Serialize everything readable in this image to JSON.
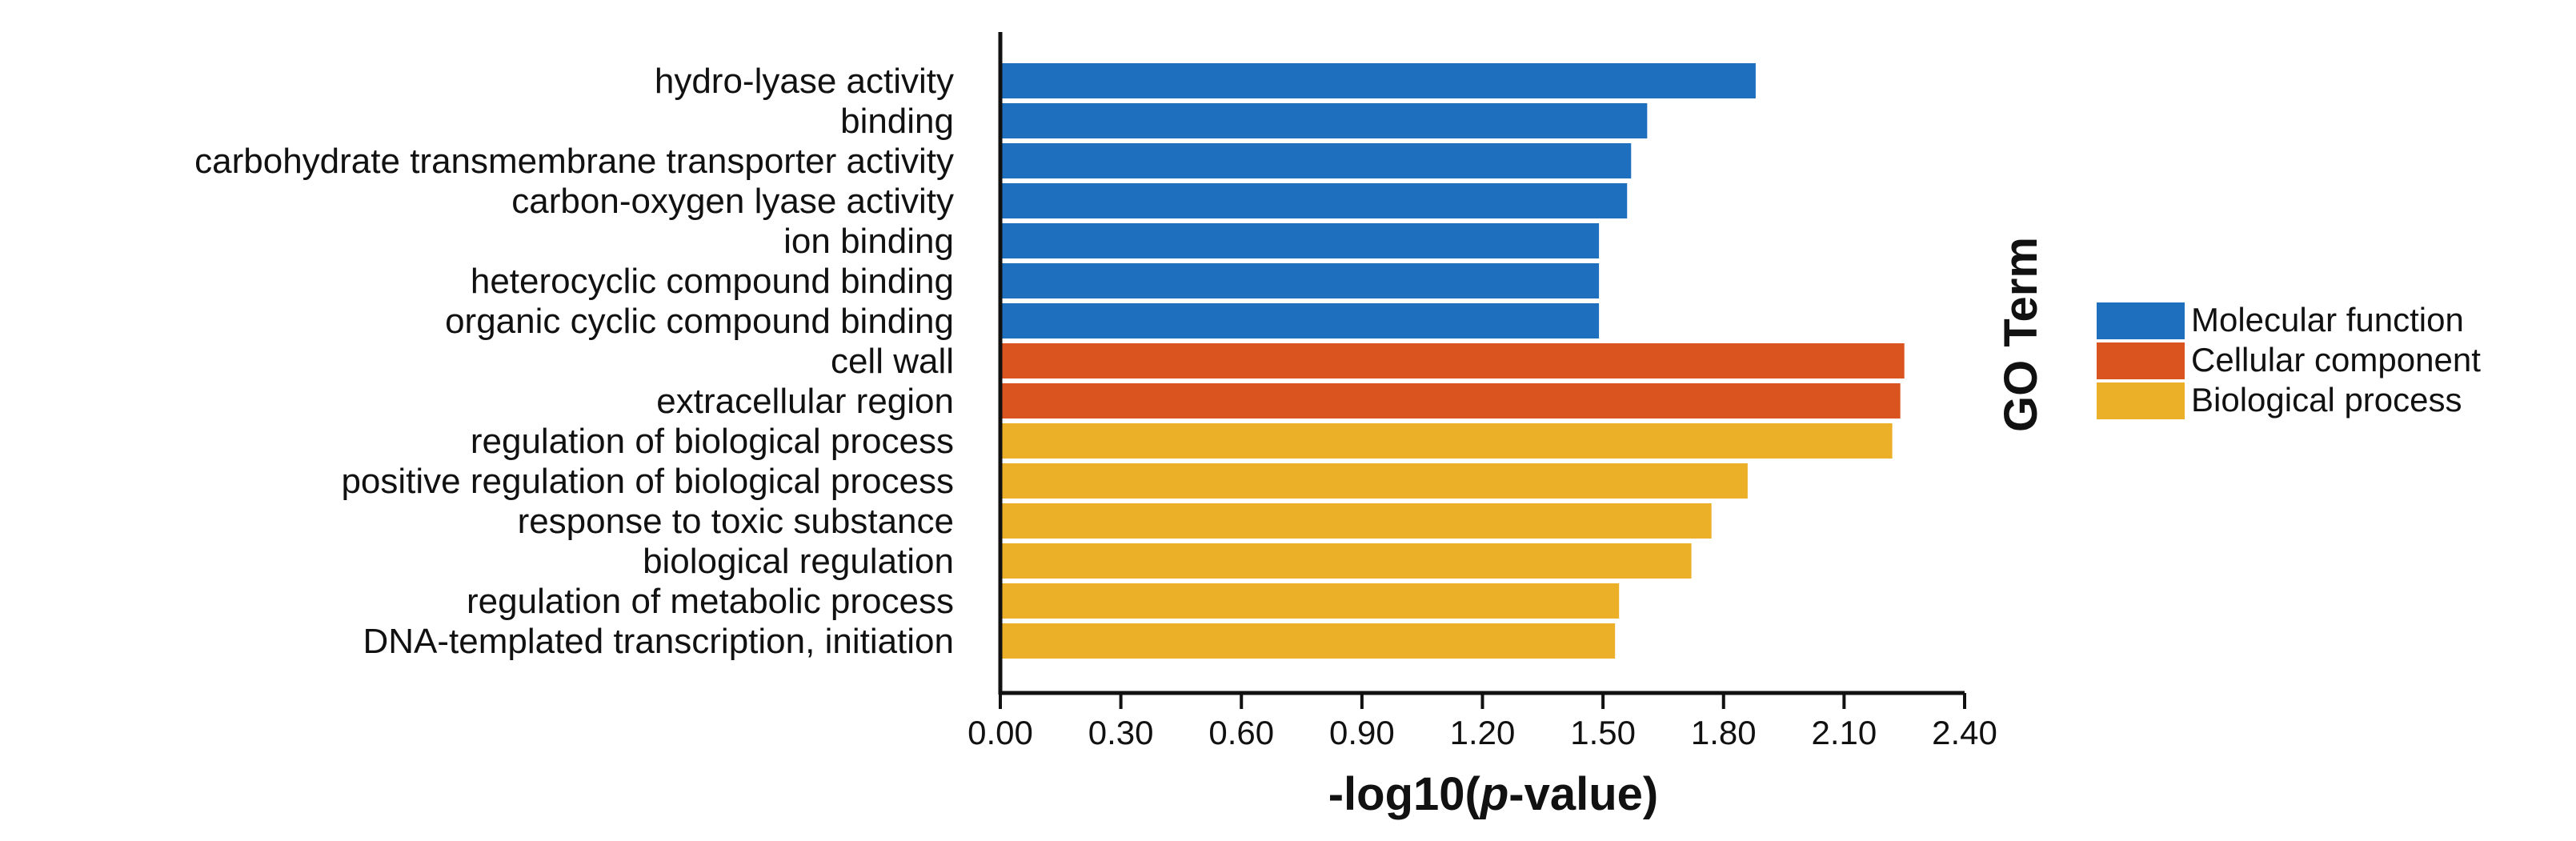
{
  "chart_data": {
    "type": "bar",
    "orientation": "horizontal",
    "categories": [
      "hydro-lyase activity",
      "binding",
      "carbohydrate transmembrane transporter activity",
      "carbon-oxygen lyase activity",
      "ion binding",
      "heterocyclic compound binding",
      "organic cyclic compound binding",
      "cell wall",
      "extracellular region",
      "regulation of biological process",
      "positive regulation of biological process",
      "response to toxic substance",
      "biological regulation",
      "regulation of metabolic process",
      "DNA-templated transcription, initiation"
    ],
    "values": [
      1.88,
      1.61,
      1.57,
      1.56,
      1.49,
      1.49,
      1.49,
      2.25,
      2.24,
      2.22,
      1.86,
      1.77,
      1.72,
      1.54,
      1.53
    ],
    "groups": [
      0,
      0,
      0,
      0,
      0,
      0,
      0,
      1,
      1,
      2,
      2,
      2,
      2,
      2,
      2
    ],
    "series": [
      {
        "name": "Molecular function",
        "color": "#1f6fbf"
      },
      {
        "name": "Cellular component",
        "color": "#d9541e"
      },
      {
        "name": "Biological process",
        "color": "#ebb028"
      }
    ],
    "title": "",
    "xlabel_main": "-log10(",
    "xlabel_italic": "p",
    "xlabel_end": "-value)",
    "ylabel": "",
    "xlim": [
      0,
      2.4
    ],
    "xticks": [
      "0.00",
      "0.30",
      "0.60",
      "0.90",
      "1.20",
      "1.50",
      "1.80",
      "2.10",
      "2.40"
    ],
    "legend_title": "GO Term",
    "legend_position": "right",
    "grid": false
  }
}
